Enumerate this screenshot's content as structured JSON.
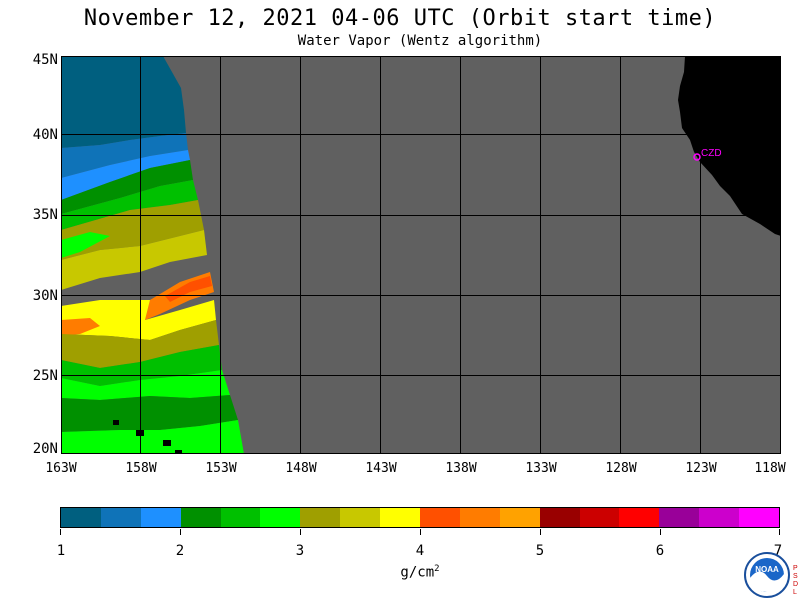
{
  "title": "November 12, 2021  04-06 UTC  (Orbit start time)",
  "subtitle": "Water Vapor (Wentz algorithm)",
  "lat_labels": [
    "45N",
    "40N",
    "35N",
    "30N",
    "25N",
    "20N"
  ],
  "lon_labels": [
    "163W",
    "158W",
    "153W",
    "148W",
    "143W",
    "138W",
    "133W",
    "128W",
    "123W",
    "118W"
  ],
  "station_label": "CZD",
  "colorbar": {
    "colors": [
      "#005f7f",
      "#0f73b8",
      "#1e90ff",
      "#009000",
      "#00c000",
      "#00ff00",
      "#9f9f00",
      "#c8c800",
      "#ffff00",
      "#ff5000",
      "#ff7c00",
      "#ffa200",
      "#990000",
      "#cc0000",
      "#ff0000",
      "#990099",
      "#cc00cc",
      "#ff00ff"
    ],
    "tick_labels": [
      "1",
      "2",
      "3",
      "4",
      "5",
      "6",
      "7"
    ],
    "units": "g/cm",
    "units_exp": "2"
  },
  "colors": {
    "no_data": "#606060",
    "land": "#000000",
    "grid": "#000000",
    "station": "#ff00ff"
  },
  "logo_text": "NOAA",
  "side_letters": [
    "P",
    "S",
    "D",
    "L"
  ]
}
